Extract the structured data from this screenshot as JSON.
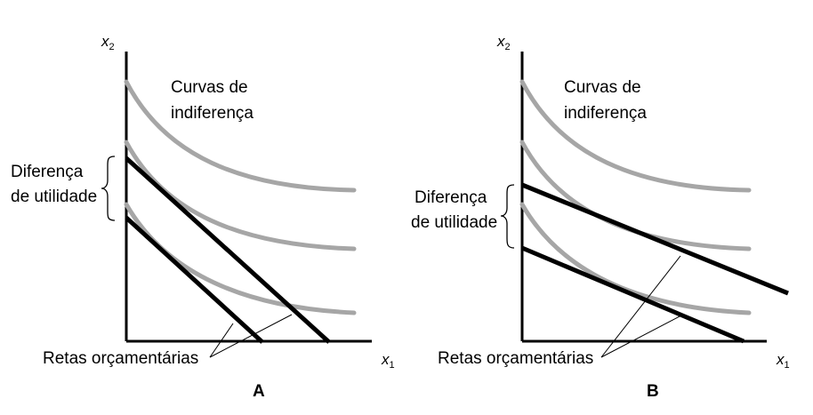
{
  "colors": {
    "indifference_curve": "#a6a6a6",
    "budget_line": "#000000",
    "axis": "#000000",
    "background": "#ffffff"
  },
  "panels": [
    {
      "id": "A",
      "panel_label": "A",
      "axis_y_var": "x",
      "axis_y_sub": "2",
      "axis_x_var": "x",
      "axis_x_sub": "1",
      "curves_label_line1": "Curvas de",
      "curves_label_line2": "indiferença",
      "difference_label_line1": "Diferença",
      "difference_label_line2": "de utilidade",
      "budget_label": "Retas orçamentárias",
      "indifference_curve_count": 3,
      "budget_line_count": 2
    },
    {
      "id": "B",
      "panel_label": "B",
      "axis_y_var": "x",
      "axis_y_sub": "2",
      "axis_x_var": "x",
      "axis_x_sub": "1",
      "curves_label_line1": "Curvas de",
      "curves_label_line2": "indiferença",
      "difference_label_line1": "Diferença",
      "difference_label_line2": "de utilidade",
      "budget_label": "Retas orçamentárias",
      "indifference_curve_count": 3,
      "budget_line_count": 2
    }
  ]
}
